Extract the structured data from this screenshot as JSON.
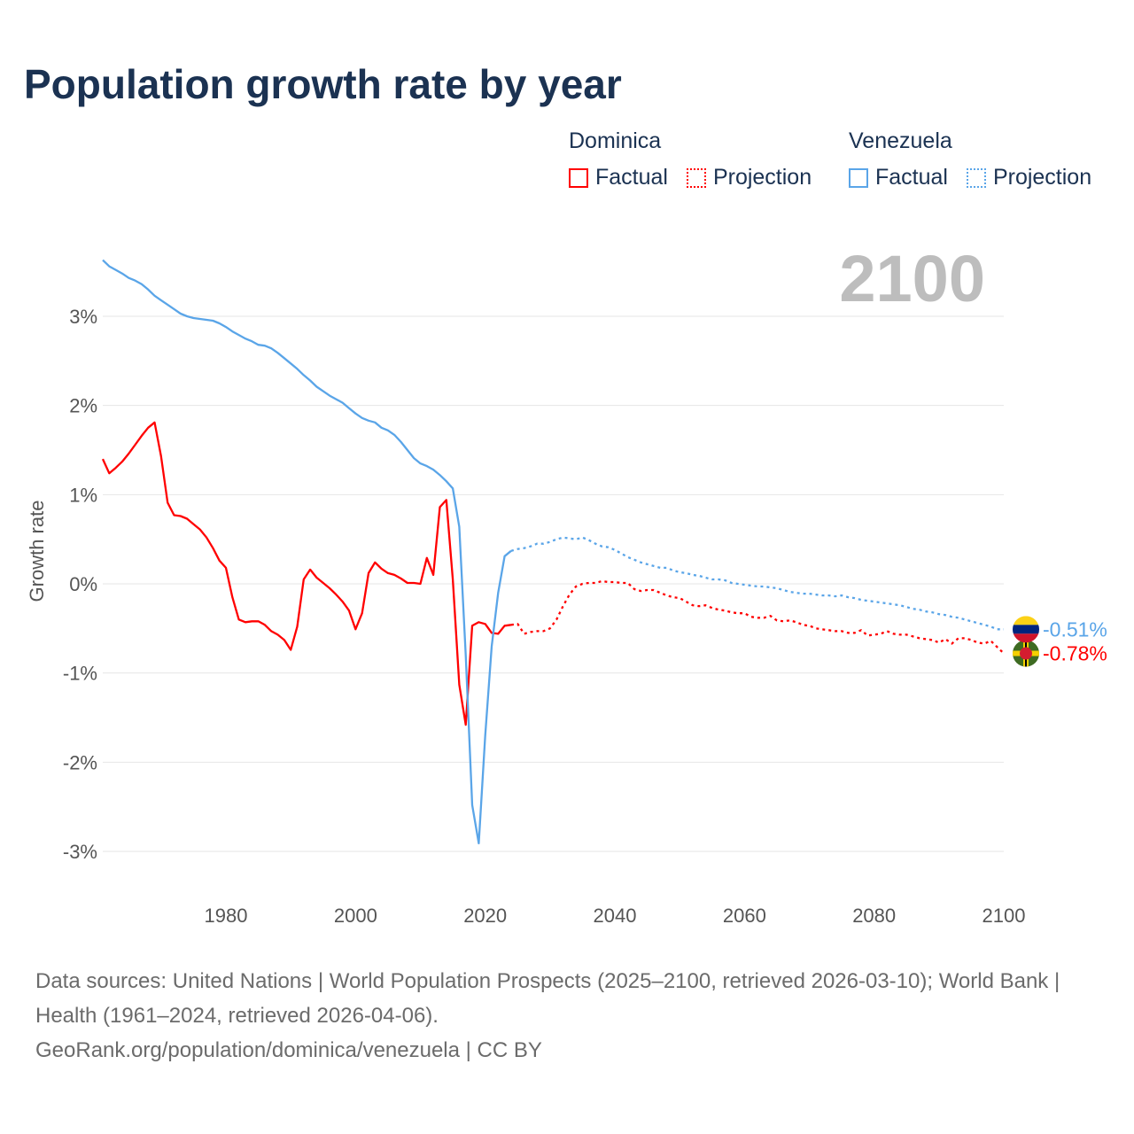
{
  "chart_data": {
    "type": "line",
    "title": "Population growth rate by year",
    "ylabel": "Growth rate",
    "xlabel": "",
    "current_year": "2100",
    "xlim": [
      1961,
      2100
    ],
    "ylim": [
      -3.5,
      3.8
    ],
    "x_ticks": [
      1980,
      2000,
      2020,
      2040,
      2060,
      2080,
      2100
    ],
    "x_tick_labels": [
      "1980",
      "2000",
      "2020",
      "2040",
      "2060",
      "2080",
      "2100"
    ],
    "y_ticks": [
      3,
      2,
      1,
      0,
      -1,
      -2,
      -3
    ],
    "y_tick_labels": [
      "3%",
      "2%",
      "1%",
      "0%",
      "-1%",
      "-2%",
      "-3%"
    ],
    "grid": true,
    "legend": {
      "placement": "top-right",
      "groups": [
        {
          "name": "Dominica",
          "factual": "Factual",
          "projection": "Projection",
          "color": "#ff0000"
        },
        {
          "name": "Venezuela",
          "factual": "Factual",
          "projection": "Projection",
          "color": "#5aa5e8"
        }
      ]
    },
    "series": [
      {
        "name": "Dominica",
        "color": "#ff0000",
        "end_label": "-0.78%",
        "factual_start": 1961,
        "factual": [
          1.4,
          1.24,
          1.3,
          1.37,
          1.46,
          1.56,
          1.66,
          1.75,
          1.81,
          1.43,
          0.91,
          0.77,
          0.76,
          0.73,
          0.67,
          0.61,
          0.52,
          0.4,
          0.26,
          0.18,
          -0.15,
          -0.4,
          -0.43,
          -0.42,
          -0.42,
          -0.46,
          -0.53,
          -0.57,
          -0.63,
          -0.74,
          -0.48,
          0.05,
          0.16,
          0.07,
          0.01,
          -0.05,
          -0.12,
          -0.2,
          -0.3,
          -0.51,
          -0.33,
          0.12,
          0.24,
          0.17,
          0.12,
          0.1,
          0.06,
          0.01,
          0.01,
          0.0,
          0.29,
          0.1,
          0.86,
          0.94,
          0.05,
          -1.13,
          -1.58,
          -0.47,
          -0.43,
          -0.45,
          -0.55,
          -0.56,
          -0.47,
          -0.46
        ],
        "projection_start": 2024,
        "projection": [
          -0.46,
          -0.45,
          -0.56,
          -0.54,
          -0.53,
          -0.53,
          -0.5,
          -0.4,
          -0.25,
          -0.12,
          -0.03,
          0.0,
          0.01,
          0.01,
          0.03,
          0.02,
          0.02,
          0.01,
          0.01,
          -0.06,
          -0.08,
          -0.07,
          -0.07,
          -0.1,
          -0.13,
          -0.15,
          -0.16,
          -0.2,
          -0.24,
          -0.25,
          -0.24,
          -0.27,
          -0.29,
          -0.3,
          -0.32,
          -0.33,
          -0.33,
          -0.37,
          -0.38,
          -0.38,
          -0.36,
          -0.41,
          -0.42,
          -0.41,
          -0.43,
          -0.46,
          -0.47,
          -0.5,
          -0.51,
          -0.52,
          -0.53,
          -0.53,
          -0.55,
          -0.55,
          -0.52,
          -0.58,
          -0.57,
          -0.56,
          -0.53,
          -0.56,
          -0.57,
          -0.57,
          -0.59,
          -0.61,
          -0.62,
          -0.63,
          -0.66,
          -0.62,
          -0.67,
          -0.61,
          -0.61,
          -0.63,
          -0.66,
          -0.67,
          -0.64,
          -0.71,
          -0.78
        ]
      },
      {
        "name": "Venezuela",
        "color": "#5aa5e8",
        "end_label": "-0.51%",
        "factual_start": 1961,
        "factual": [
          3.63,
          3.56,
          3.52,
          3.48,
          3.43,
          3.4,
          3.36,
          3.3,
          3.23,
          3.18,
          3.13,
          3.08,
          3.03,
          3.0,
          2.98,
          2.97,
          2.96,
          2.95,
          2.92,
          2.88,
          2.83,
          2.79,
          2.75,
          2.72,
          2.68,
          2.67,
          2.64,
          2.59,
          2.53,
          2.47,
          2.41,
          2.34,
          2.28,
          2.21,
          2.16,
          2.11,
          2.07,
          2.03,
          1.97,
          1.91,
          1.86,
          1.83,
          1.81,
          1.75,
          1.72,
          1.67,
          1.59,
          1.5,
          1.41,
          1.35,
          1.32,
          1.28,
          1.22,
          1.15,
          1.07,
          0.64,
          -0.8,
          -2.48,
          -2.91,
          -1.7,
          -0.7,
          -0.1,
          0.31,
          0.37
        ],
        "projection_start": 2024,
        "projection": [
          0.37,
          0.39,
          0.4,
          0.42,
          0.45,
          0.45,
          0.47,
          0.5,
          0.52,
          0.51,
          0.5,
          0.52,
          0.49,
          0.45,
          0.42,
          0.41,
          0.38,
          0.34,
          0.3,
          0.27,
          0.24,
          0.22,
          0.2,
          0.18,
          0.18,
          0.15,
          0.13,
          0.12,
          0.1,
          0.09,
          0.07,
          0.05,
          0.05,
          0.04,
          0.01,
          0.0,
          -0.01,
          -0.02,
          -0.03,
          -0.03,
          -0.04,
          -0.05,
          -0.07,
          -0.09,
          -0.1,
          -0.11,
          -0.11,
          -0.12,
          -0.13,
          -0.13,
          -0.14,
          -0.13,
          -0.15,
          -0.16,
          -0.18,
          -0.19,
          -0.2,
          -0.21,
          -0.22,
          -0.23,
          -0.24,
          -0.26,
          -0.28,
          -0.29,
          -0.31,
          -0.32,
          -0.34,
          -0.35,
          -0.37,
          -0.38,
          -0.4,
          -0.42,
          -0.44,
          -0.46,
          -0.48,
          -0.51,
          -0.51
        ]
      }
    ]
  },
  "footer": {
    "sources": "Data sources: United Nations | World Population Prospects (2025–2100, retrieved 2026-03-10); World Bank | Health (1961–2024, retrieved 2026-04-06).",
    "credit": "GeoRank.org/population/dominica/venezuela | CC BY"
  }
}
